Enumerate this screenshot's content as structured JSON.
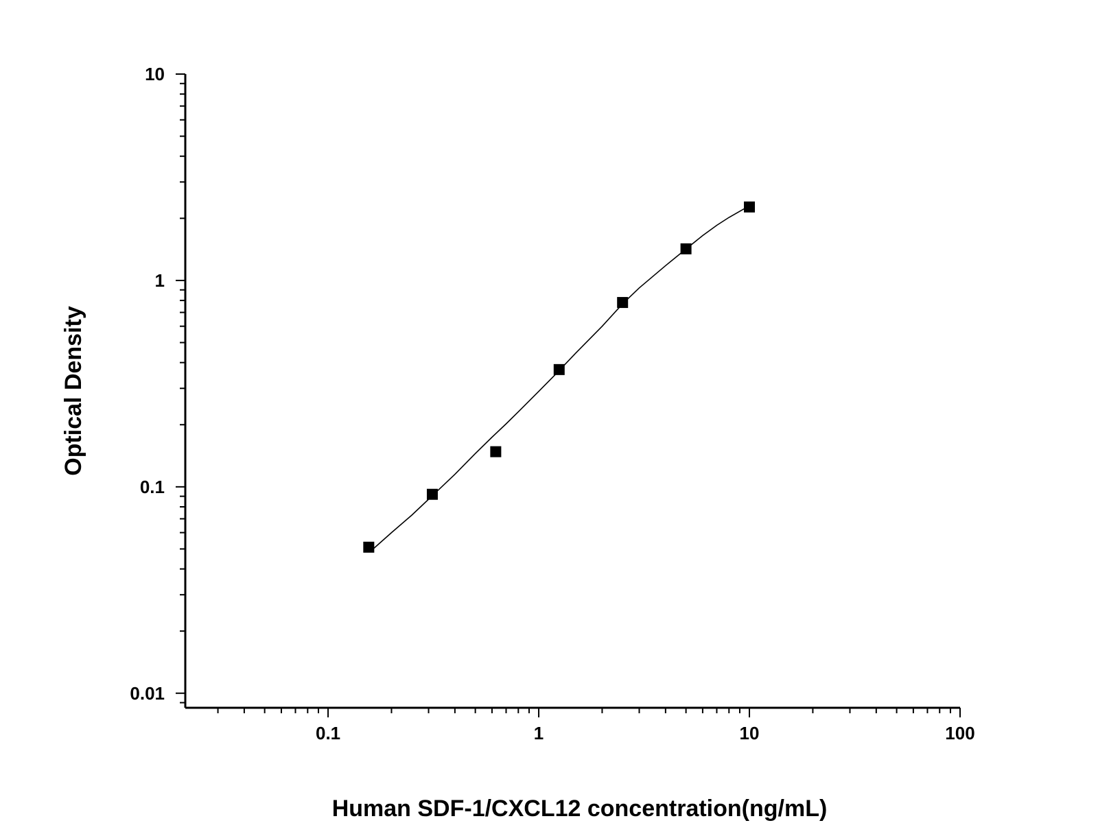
{
  "chart_data": {
    "type": "scatter",
    "xlabel": "Human SDF-1/CXCL12 concentration(ng/mL)",
    "ylabel": "Optical Density",
    "x_scale": "log",
    "y_scale": "log",
    "xlim": [
      0.021,
      100
    ],
    "ylim": [
      0.0085,
      10
    ],
    "x_major_ticks": [
      0.1,
      1,
      10,
      100
    ],
    "x_tick_labels": [
      "0.1",
      "1",
      "10",
      "100"
    ],
    "y_major_ticks": [
      0.01,
      0.1,
      1,
      10
    ],
    "y_tick_labels": [
      "0.01",
      "0.1",
      "1",
      "10"
    ],
    "grid": false,
    "legend": "none",
    "points": {
      "marker": "square",
      "color": "#000000",
      "x": [
        0.156,
        0.3125,
        0.625,
        1.25,
        2.5,
        5,
        10
      ],
      "y": [
        0.051,
        0.092,
        0.148,
        0.37,
        0.782,
        1.423,
        2.27
      ]
    },
    "fit_curve": {
      "color": "#000000",
      "x": [
        0.16,
        0.2,
        0.25,
        0.3,
        0.4,
        0.5,
        0.6,
        0.7,
        0.8,
        1.0,
        1.2,
        1.5,
        2.0,
        2.5,
        3.0,
        4.0,
        5.0,
        6.0,
        7.0,
        8.0,
        10.0
      ],
      "y": [
        0.049,
        0.06,
        0.073,
        0.087,
        0.115,
        0.145,
        0.174,
        0.202,
        0.231,
        0.29,
        0.35,
        0.445,
        0.6,
        0.77,
        0.92,
        1.18,
        1.42,
        1.65,
        1.85,
        2.02,
        2.3
      ]
    }
  }
}
